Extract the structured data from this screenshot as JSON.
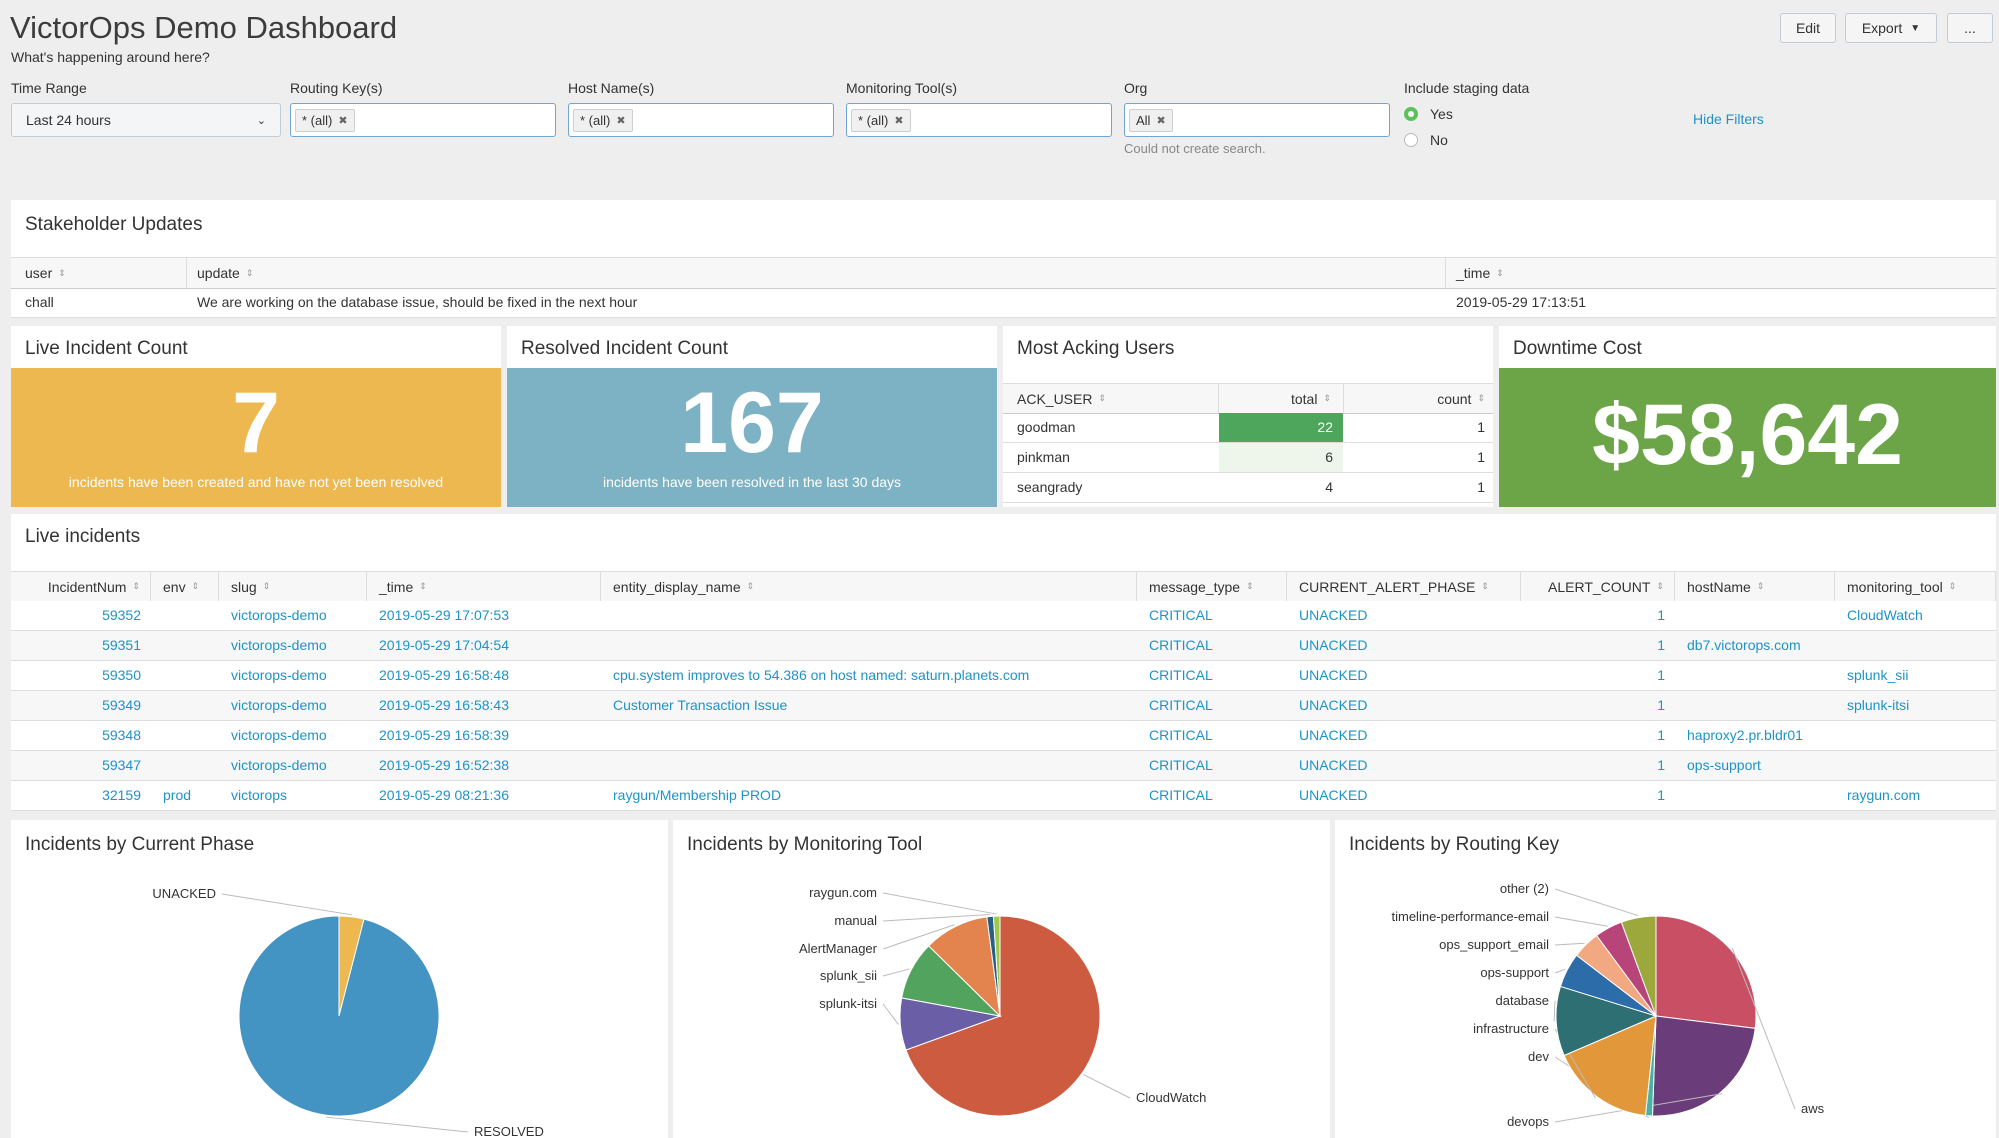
{
  "header": {
    "title": "VictorOps Demo Dashboard",
    "subtitle": "What's happening around here?",
    "edit": "Edit",
    "export": "Export",
    "more": "..."
  },
  "filters": {
    "time_range_label": "Time Range",
    "time_range_value": "Last 24 hours",
    "routing_label": "Routing Key(s)",
    "routing_token": "* (all)",
    "host_label": "Host Name(s)",
    "host_token": "* (all)",
    "tool_label": "Monitoring Tool(s)",
    "tool_token": "* (all)",
    "org_label": "Org",
    "org_token": "All",
    "org_error": "Could not create search.",
    "staging_label": "Include staging data",
    "staging_yes": "Yes",
    "staging_no": "No",
    "staging_selected": "Yes",
    "hide_filters": "Hide Filters"
  },
  "stakeholder": {
    "title": "Stakeholder Updates",
    "columns": [
      "user",
      "update",
      "_time"
    ],
    "rows": [
      [
        "chall",
        "We are working on the database issue, should be fixed in the next hour",
        "2019-05-29 17:13:51"
      ]
    ]
  },
  "live_count": {
    "title": "Live Incident Count",
    "value": "7",
    "caption": "incidents have been created and have not yet been resolved",
    "color": "#ecb84f"
  },
  "resolved_count": {
    "title": "Resolved Incident Count",
    "value": "167",
    "caption": "incidents have been resolved in the last 30 days",
    "color": "#7cb2c3"
  },
  "acking": {
    "title": "Most Acking Users",
    "columns": [
      "ACK_USER",
      "total",
      "count"
    ],
    "rows": [
      {
        "user": "goodman",
        "total": "22",
        "count": "1"
      },
      {
        "user": "pinkman",
        "total": "6",
        "count": "1"
      },
      {
        "user": "seangrady",
        "total": "4",
        "count": "1"
      }
    ],
    "max_total": 22,
    "heat_color": "#4ea65c"
  },
  "downtime": {
    "title": "Downtime Cost",
    "value": "$58,642",
    "color": "#6ca547"
  },
  "live_incidents": {
    "title": "Live incidents",
    "columns": [
      "IncidentNum",
      "env",
      "slug",
      "_time",
      "entity_display_name",
      "message_type",
      "CURRENT_ALERT_PHASE",
      "ALERT_COUNT",
      "hostName",
      "monitoring_tool"
    ],
    "rows": [
      [
        "59352",
        "",
        "victorops-demo",
        "2019-05-29 17:07:53",
        "",
        "CRITICAL",
        "UNACKED",
        "1",
        "",
        "CloudWatch"
      ],
      [
        "59351",
        "",
        "victorops-demo",
        "2019-05-29 17:04:54",
        "",
        "CRITICAL",
        "UNACKED",
        "1",
        "db7.victorops.com",
        ""
      ],
      [
        "59350",
        "",
        "victorops-demo",
        "2019-05-29 16:58:48",
        "cpu.system improves to 54.386 on host named: saturn.planets.com",
        "CRITICAL",
        "UNACKED",
        "1",
        "",
        "splunk_sii"
      ],
      [
        "59349",
        "",
        "victorops-demo",
        "2019-05-29 16:58:43",
        "Customer Transaction Issue",
        "CRITICAL",
        "UNACKED",
        "1",
        "",
        "splunk-itsi"
      ],
      [
        "59348",
        "",
        "victorops-demo",
        "2019-05-29 16:58:39",
        "",
        "CRITICAL",
        "UNACKED",
        "1",
        "haproxy2.pr.bldr01",
        ""
      ],
      [
        "59347",
        "",
        "victorops-demo",
        "2019-05-29 16:52:38",
        "",
        "CRITICAL",
        "UNACKED",
        "1",
        "ops-support",
        ""
      ],
      [
        "32159",
        "prod",
        "victorops",
        "2019-05-29 08:21:36",
        "raygun/Membership PROD",
        "CRITICAL",
        "UNACKED",
        "1",
        "",
        "raygun.com"
      ]
    ]
  },
  "charts": {
    "chart_data": [
      {
        "type": "pie",
        "title": "Incidents by Current Phase",
        "labels": [
          "UNACKED",
          "RESOLVED"
        ],
        "values": [
          7,
          167
        ],
        "colors": [
          "#ecb84f",
          "#4393c3"
        ]
      },
      {
        "type": "pie",
        "title": "Incidents by Monitoring Tool",
        "labels": [
          "CloudWatch",
          "splunk-itsi",
          "splunk_sii",
          "AlertManager",
          "manual",
          "raygun.com"
        ],
        "values": [
          66,
          8,
          9,
          10,
          1,
          1
        ],
        "colors": [
          "#cc5b40",
          "#6a5fa6",
          "#52a35d",
          "#e3844e",
          "#2a5f86",
          "#9ec94f"
        ]
      },
      {
        "type": "pie",
        "title": "Incidents by Routing Key",
        "labels": [
          "aws",
          "devops",
          "dev",
          "infrastructure",
          "database",
          "ops-support",
          "ops_support_email",
          "timeline-performance-email",
          "other (2)"
        ],
        "values": [
          24,
          21,
          1,
          15,
          10,
          5,
          4,
          4,
          5
        ],
        "colors": [
          "#c95064",
          "#6a3d7a",
          "#4bb0a5",
          "#e3973b",
          "#2d6f73",
          "#2c6ca8",
          "#f2a880",
          "#b8457a",
          "#9ca83c"
        ]
      }
    ]
  }
}
